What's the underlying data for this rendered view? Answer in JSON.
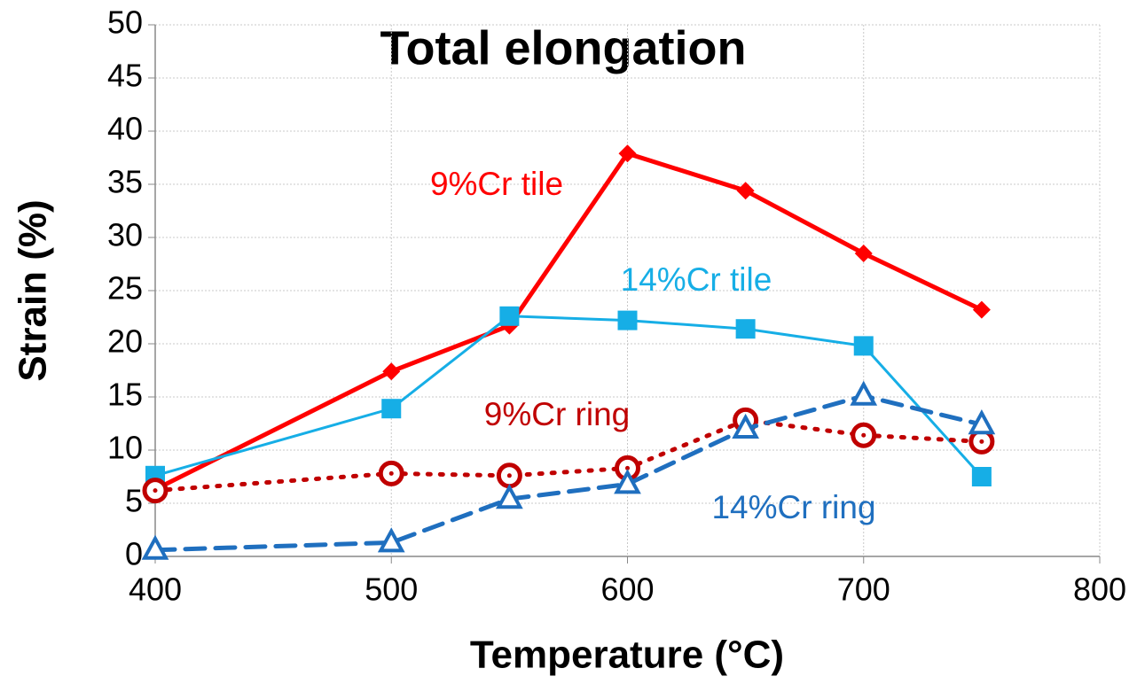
{
  "chart_data": {
    "type": "line",
    "title": "Total elongation",
    "x_label": "Temperature (°C)",
    "y_label": "Strain (%)",
    "x": [
      400,
      500,
      550,
      600,
      650,
      700,
      750
    ],
    "xlim": [
      400,
      800
    ],
    "xticks": [
      400,
      500,
      600,
      700,
      800
    ],
    "ylim": [
      0,
      50
    ],
    "yticks": [
      0,
      5,
      10,
      15,
      20,
      25,
      30,
      35,
      40,
      45,
      50
    ],
    "grid": true,
    "series": [
      {
        "name": "9%Cr tile",
        "color": "#ff0000",
        "marker": "diamond",
        "dash": "solid",
        "values": [
          6.3,
          17.4,
          21.7,
          37.9,
          34.4,
          28.5,
          23.2
        ]
      },
      {
        "name": "14%Cr tile",
        "color": "#16aee6",
        "marker": "square",
        "dash": "solid",
        "values": [
          7.6,
          13.9,
          22.6,
          22.2,
          21.4,
          19.8,
          7.5
        ]
      },
      {
        "name": "9%Cr ring",
        "color": "#c00000",
        "marker": "circle",
        "dash": "dotted",
        "values": [
          6.2,
          7.8,
          7.6,
          8.3,
          12.8,
          11.4,
          10.8
        ]
      },
      {
        "name": "14%Cr ring",
        "color": "#1f6fbf",
        "marker": "triangle",
        "dash": "dashed",
        "values": [
          0.6,
          1.3,
          5.4,
          6.8,
          12.0,
          15.1,
          12.4
        ]
      }
    ]
  }
}
